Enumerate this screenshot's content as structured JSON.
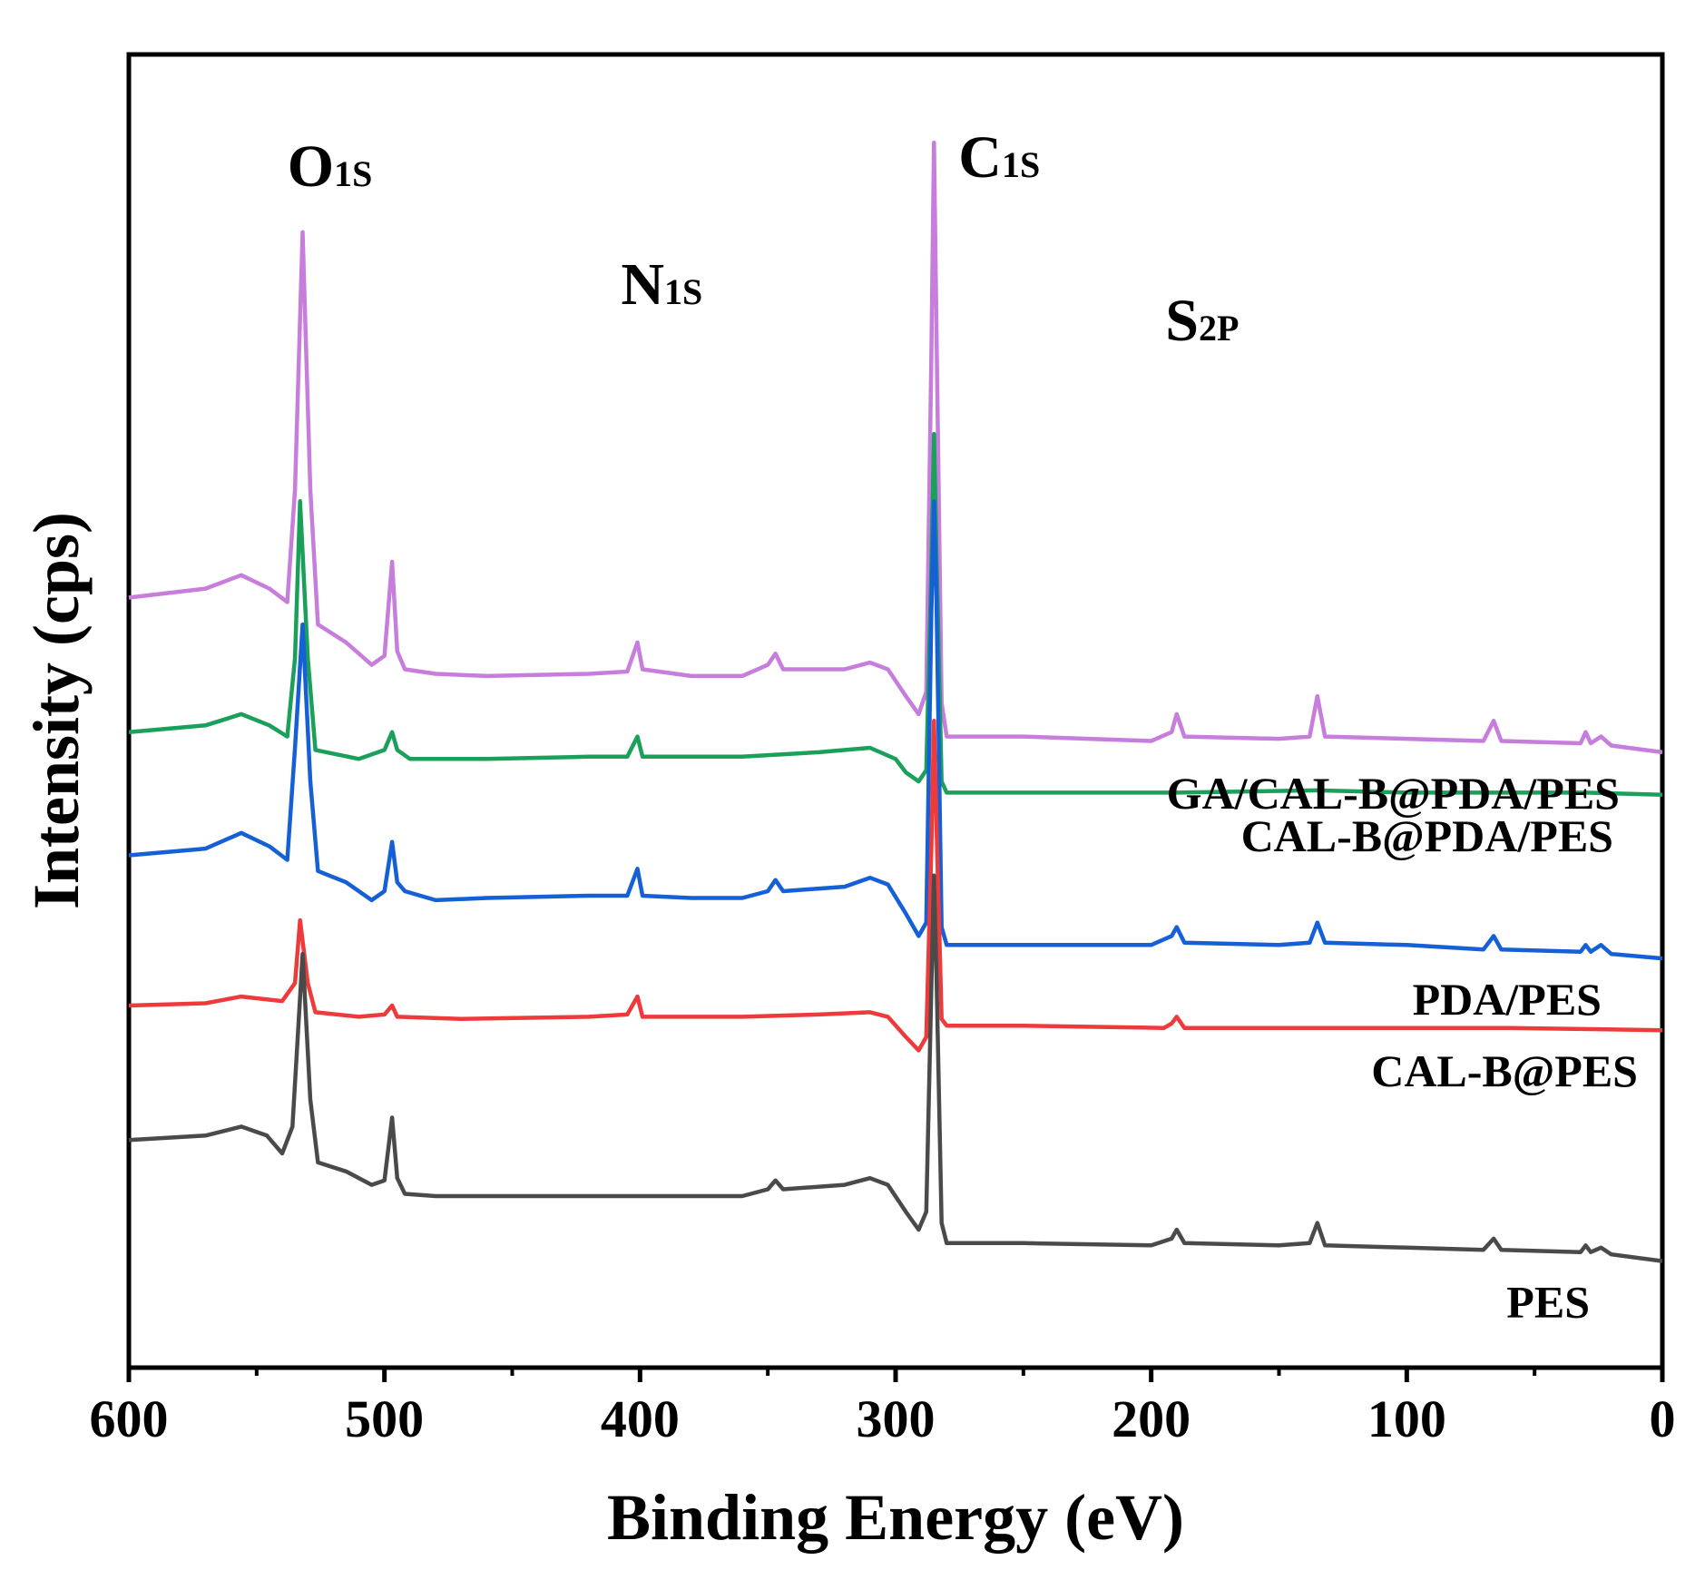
{
  "chart_data": {
    "type": "line",
    "title": "",
    "xlabel": "Binding Energy (eV)",
    "ylabel": "Intensity (cps)",
    "xlim": [
      600,
      0
    ],
    "x_ticks": [
      "600",
      "500",
      "400",
      "300",
      "200",
      "100",
      "0"
    ],
    "x_tick_values": [
      600,
      500,
      400,
      300,
      200,
      100,
      0
    ],
    "y_ticks": [],
    "grid": false,
    "legend": "series labels placed under each trace on the right",
    "peak_annotations": [
      {
        "main": "O",
        "sub": "1S",
        "x": 532
      },
      {
        "main": "N",
        "sub": "1S",
        "x": 400
      },
      {
        "main": "C",
        "sub": "1S",
        "x": 285
      },
      {
        "main": "S",
        "sub": "2P",
        "x": 190
      }
    ],
    "series": [
      {
        "name": "GA/CAL-B@PDA/PES",
        "color": "#c77ddc",
        "offset": 1.97,
        "points": [
          [
            600,
            0.02
          ],
          [
            570,
            0.06
          ],
          [
            556,
            0.12
          ],
          [
            545,
            0.06
          ],
          [
            538,
            0.0
          ],
          [
            535,
            0.5
          ],
          [
            532,
            1.65
          ],
          [
            529,
            0.5
          ],
          [
            526,
            -0.1
          ],
          [
            515,
            -0.18
          ],
          [
            505,
            -0.28
          ],
          [
            500,
            -0.24
          ],
          [
            497,
            0.18
          ],
          [
            495,
            -0.22
          ],
          [
            492,
            -0.3
          ],
          [
            480,
            -0.32
          ],
          [
            460,
            -0.33
          ],
          [
            420,
            -0.32
          ],
          [
            405,
            -0.31
          ],
          [
            401,
            -0.18
          ],
          [
            399,
            -0.3
          ],
          [
            380,
            -0.33
          ],
          [
            360,
            -0.33
          ],
          [
            350,
            -0.28
          ],
          [
            347,
            -0.23
          ],
          [
            344,
            -0.3
          ],
          [
            320,
            -0.3
          ],
          [
            310,
            -0.27
          ],
          [
            303,
            -0.3
          ],
          [
            296,
            -0.42
          ],
          [
            291,
            -0.5
          ],
          [
            288,
            -0.4
          ],
          [
            286,
            1.1
          ],
          [
            285,
            2.05
          ],
          [
            284,
            1.2
          ],
          [
            282,
            -0.45
          ],
          [
            280,
            -0.6
          ],
          [
            250,
            -0.6
          ],
          [
            200,
            -0.62
          ],
          [
            192,
            -0.58
          ],
          [
            190,
            -0.5
          ],
          [
            187,
            -0.6
          ],
          [
            150,
            -0.61
          ],
          [
            138,
            -0.6
          ],
          [
            135,
            -0.42
          ],
          [
            132,
            -0.6
          ],
          [
            100,
            -0.61
          ],
          [
            70,
            -0.62
          ],
          [
            66,
            -0.53
          ],
          [
            63,
            -0.62
          ],
          [
            32,
            -0.63
          ],
          [
            30,
            -0.58
          ],
          [
            28,
            -0.63
          ],
          [
            24,
            -0.6
          ],
          [
            20,
            -0.64
          ],
          [
            0,
            -0.67
          ]
        ]
      },
      {
        "name": "CAL-B@PDA/PES",
        "color": "#1aa05a",
        "offset": 1.37,
        "points": [
          [
            600,
            0.02
          ],
          [
            570,
            0.05
          ],
          [
            556,
            0.1
          ],
          [
            545,
            0.05
          ],
          [
            538,
            0.0
          ],
          [
            535,
            0.35
          ],
          [
            533,
            1.05
          ],
          [
            530,
            0.35
          ],
          [
            527,
            -0.06
          ],
          [
            510,
            -0.1
          ],
          [
            500,
            -0.06
          ],
          [
            497,
            0.02
          ],
          [
            495,
            -0.06
          ],
          [
            490,
            -0.1
          ],
          [
            460,
            -0.1
          ],
          [
            420,
            -0.09
          ],
          [
            405,
            -0.09
          ],
          [
            401,
            0.0
          ],
          [
            399,
            -0.09
          ],
          [
            360,
            -0.09
          ],
          [
            330,
            -0.07
          ],
          [
            310,
            -0.05
          ],
          [
            300,
            -0.1
          ],
          [
            296,
            -0.16
          ],
          [
            291,
            -0.2
          ],
          [
            288,
            -0.15
          ],
          [
            286,
            0.75
          ],
          [
            285,
            1.35
          ],
          [
            284,
            0.8
          ],
          [
            282,
            -0.2
          ],
          [
            280,
            -0.25
          ],
          [
            250,
            -0.25
          ],
          [
            190,
            -0.25
          ],
          [
            135,
            -0.24
          ],
          [
            100,
            -0.25
          ],
          [
            66,
            -0.25
          ],
          [
            30,
            -0.25
          ],
          [
            0,
            -0.26
          ]
        ]
      },
      {
        "name": "PDA/PES",
        "color": "#1560d6",
        "offset": 0.82,
        "points": [
          [
            600,
            0.02
          ],
          [
            570,
            0.05
          ],
          [
            556,
            0.12
          ],
          [
            545,
            0.06
          ],
          [
            538,
            0.0
          ],
          [
            535,
            0.5
          ],
          [
            532,
            1.05
          ],
          [
            529,
            0.35
          ],
          [
            526,
            -0.05
          ],
          [
            515,
            -0.1
          ],
          [
            505,
            -0.18
          ],
          [
            500,
            -0.14
          ],
          [
            497,
            0.08
          ],
          [
            495,
            -0.1
          ],
          [
            492,
            -0.14
          ],
          [
            480,
            -0.18
          ],
          [
            460,
            -0.17
          ],
          [
            420,
            -0.16
          ],
          [
            405,
            -0.16
          ],
          [
            401,
            -0.04
          ],
          [
            399,
            -0.16
          ],
          [
            380,
            -0.17
          ],
          [
            360,
            -0.17
          ],
          [
            350,
            -0.14
          ],
          [
            347,
            -0.09
          ],
          [
            344,
            -0.14
          ],
          [
            320,
            -0.12
          ],
          [
            310,
            -0.08
          ],
          [
            303,
            -0.11
          ],
          [
            296,
            -0.24
          ],
          [
            291,
            -0.34
          ],
          [
            288,
            -0.28
          ],
          [
            286,
            1.1
          ],
          [
            285,
            1.6
          ],
          [
            284,
            1.15
          ],
          [
            282,
            -0.3
          ],
          [
            280,
            -0.38
          ],
          [
            250,
            -0.38
          ],
          [
            200,
            -0.38
          ],
          [
            192,
            -0.34
          ],
          [
            190,
            -0.3
          ],
          [
            187,
            -0.37
          ],
          [
            150,
            -0.38
          ],
          [
            138,
            -0.37
          ],
          [
            135,
            -0.28
          ],
          [
            132,
            -0.37
          ],
          [
            100,
            -0.38
          ],
          [
            70,
            -0.4
          ],
          [
            66,
            -0.34
          ],
          [
            63,
            -0.4
          ],
          [
            32,
            -0.41
          ],
          [
            30,
            -0.38
          ],
          [
            28,
            -0.41
          ],
          [
            24,
            -0.38
          ],
          [
            20,
            -0.42
          ],
          [
            0,
            -0.44
          ]
        ]
      },
      {
        "name": "CAL-B@PES",
        "color": "#ed3b3b",
        "offset": 0.17,
        "points": [
          [
            600,
            0.0
          ],
          [
            570,
            0.01
          ],
          [
            556,
            0.04
          ],
          [
            540,
            0.02
          ],
          [
            535,
            0.1
          ],
          [
            533,
            0.38
          ],
          [
            530,
            0.1
          ],
          [
            527,
            -0.03
          ],
          [
            510,
            -0.05
          ],
          [
            500,
            -0.04
          ],
          [
            497,
            0.0
          ],
          [
            495,
            -0.05
          ],
          [
            470,
            -0.06
          ],
          [
            420,
            -0.05
          ],
          [
            405,
            -0.04
          ],
          [
            401,
            0.04
          ],
          [
            399,
            -0.05
          ],
          [
            360,
            -0.05
          ],
          [
            330,
            -0.04
          ],
          [
            310,
            -0.03
          ],
          [
            303,
            -0.05
          ],
          [
            296,
            -0.14
          ],
          [
            291,
            -0.2
          ],
          [
            288,
            -0.14
          ],
          [
            286,
            0.7
          ],
          [
            285,
            1.27
          ],
          [
            284,
            0.8
          ],
          [
            282,
            -0.06
          ],
          [
            280,
            -0.09
          ],
          [
            250,
            -0.09
          ],
          [
            195,
            -0.1
          ],
          [
            192,
            -0.08
          ],
          [
            190,
            -0.05
          ],
          [
            187,
            -0.1
          ],
          [
            150,
            -0.1
          ],
          [
            100,
            -0.1
          ],
          [
            60,
            -0.1
          ],
          [
            0,
            -0.11
          ]
        ]
      },
      {
        "name": "PES",
        "color": "#4a4a4a",
        "offset": -0.45,
        "points": [
          [
            600,
            0.02
          ],
          [
            570,
            0.04
          ],
          [
            556,
            0.08
          ],
          [
            546,
            0.04
          ],
          [
            540,
            -0.04
          ],
          [
            536,
            0.08
          ],
          [
            532,
            0.85
          ],
          [
            529,
            0.2
          ],
          [
            526,
            -0.08
          ],
          [
            515,
            -0.12
          ],
          [
            505,
            -0.18
          ],
          [
            500,
            -0.16
          ],
          [
            497,
            0.12
          ],
          [
            495,
            -0.15
          ],
          [
            492,
            -0.22
          ],
          [
            480,
            -0.23
          ],
          [
            460,
            -0.23
          ],
          [
            420,
            -0.23
          ],
          [
            380,
            -0.23
          ],
          [
            360,
            -0.23
          ],
          [
            350,
            -0.2
          ],
          [
            347,
            -0.16
          ],
          [
            344,
            -0.2
          ],
          [
            320,
            -0.18
          ],
          [
            310,
            -0.15
          ],
          [
            303,
            -0.18
          ],
          [
            296,
            -0.3
          ],
          [
            291,
            -0.38
          ],
          [
            288,
            -0.3
          ],
          [
            286,
            0.7
          ],
          [
            285,
            1.2
          ],
          [
            284,
            0.75
          ],
          [
            282,
            -0.35
          ],
          [
            280,
            -0.44
          ],
          [
            250,
            -0.44
          ],
          [
            200,
            -0.45
          ],
          [
            192,
            -0.42
          ],
          [
            190,
            -0.38
          ],
          [
            187,
            -0.44
          ],
          [
            150,
            -0.45
          ],
          [
            138,
            -0.44
          ],
          [
            135,
            -0.35
          ],
          [
            132,
            -0.45
          ],
          [
            100,
            -0.46
          ],
          [
            70,
            -0.47
          ],
          [
            66,
            -0.42
          ],
          [
            63,
            -0.47
          ],
          [
            32,
            -0.48
          ],
          [
            30,
            -0.45
          ],
          [
            28,
            -0.48
          ],
          [
            24,
            -0.46
          ],
          [
            20,
            -0.49
          ],
          [
            0,
            -0.52
          ]
        ]
      }
    ]
  }
}
